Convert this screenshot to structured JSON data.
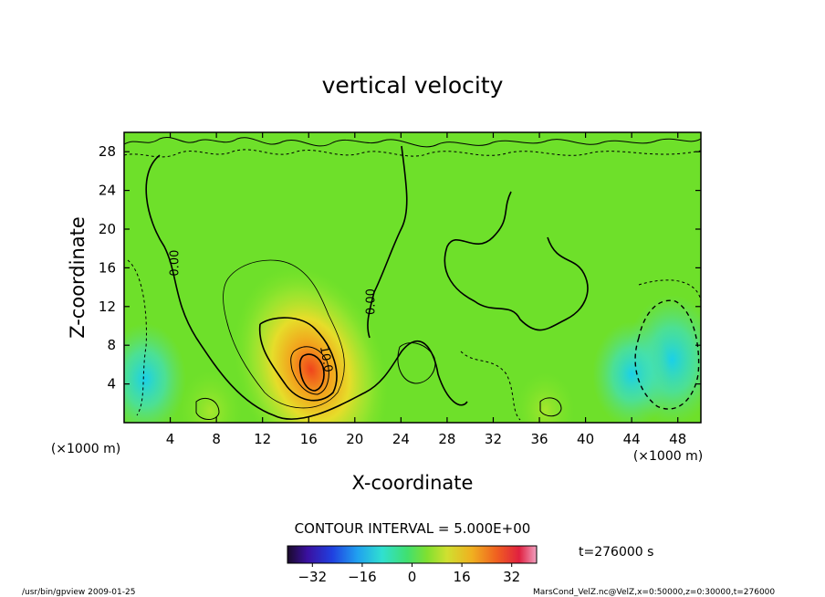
{
  "chart_data": {
    "type": "heatmap",
    "title": "vertical velocity",
    "xlabel": "X-coordinate",
    "ylabel": "Z-coordinate",
    "x_unit_left": "(×1000 m)",
    "x_unit_right": "(×1000 m)",
    "xlim": [
      0,
      50
    ],
    "ylim": [
      0,
      30
    ],
    "xticks": [
      4,
      8,
      12,
      16,
      20,
      24,
      28,
      32,
      36,
      40,
      44,
      48
    ],
    "yticks": [
      4,
      8,
      12,
      16,
      20,
      24,
      28
    ],
    "contour_interval_text": "CONTOUR INTERVAL = 5.000E+00",
    "time_text": "t=276000 s",
    "contour_labels": [
      {
        "text": "0.00",
        "x": 4.7,
        "z": 16.5,
        "angle": -90
      },
      {
        "text": "0.00",
        "x": 21.7,
        "z": 12.5,
        "angle": -90
      },
      {
        "text": "10.0",
        "x": 17.2,
        "z": 6.5,
        "angle": 80
      }
    ],
    "colorbar": {
      "range": [
        -40,
        40
      ],
      "tick_labels": [
        "−32",
        "−16",
        "0",
        "16",
        "32"
      ],
      "tick_values": [
        -32,
        -16,
        0,
        16,
        32
      ]
    },
    "features": [
      {
        "kind": "max",
        "x": 16.2,
        "z": 5.5,
        "value": 28
      },
      {
        "kind": "positive",
        "x": 7.5,
        "z": 1.2,
        "value": 6
      },
      {
        "kind": "positive",
        "x": 36.5,
        "z": 1.3,
        "value": 5
      },
      {
        "kind": "negative",
        "x": 47.5,
        "z": 6.5,
        "value": -14
      },
      {
        "kind": "negative",
        "x": 44.0,
        "z": 5.0,
        "value": -10
      },
      {
        "kind": "negative",
        "x": 1.8,
        "z": 4.5,
        "value": -11
      }
    ],
    "grid": false
  },
  "footer": {
    "left": "/usr/bin/gpview  2009-01-25",
    "right": "MarsCond_VelZ.nc@VelZ,x=0:50000,z=0:30000,t=276000"
  }
}
